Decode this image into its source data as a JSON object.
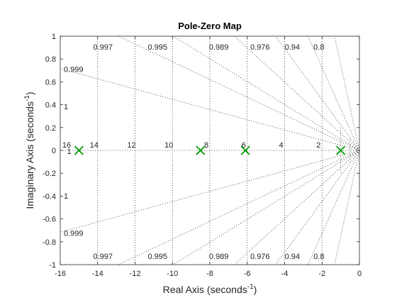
{
  "chart_data": {
    "type": "scatter",
    "title": "Pole-Zero Map",
    "xlabel": {
      "main": "Real Axis (seconds",
      "sup": "-1",
      "close": ")"
    },
    "ylabel": {
      "main": "Imaginary Axis (seconds",
      "sup": "-1",
      "close": ")"
    },
    "xlim": [
      -16,
      0
    ],
    "ylim": [
      -1,
      1
    ],
    "x_ticks": [
      -16,
      -14,
      -12,
      -10,
      -8,
      -6,
      -4,
      -2,
      0
    ],
    "y_ticks": [
      -1,
      -0.8,
      -0.6,
      -0.4,
      -0.2,
      0,
      0.2,
      0.4,
      0.6,
      0.8,
      1
    ],
    "x_tick_labels": [
      "-16",
      "-14",
      "-12",
      "-10",
      "-8",
      "-6",
      "-4",
      "-2",
      "0"
    ],
    "y_tick_labels": [
      "-1",
      "-0.8",
      "-0.6",
      "-0.4",
      "-0.2",
      "0",
      "0.2",
      "0.4",
      "0.6",
      "0.8",
      "1"
    ],
    "grid": true,
    "grid_style": "dotted",
    "poles": {
      "marker": "x",
      "color": "#009900",
      "x": [
        -15,
        -8.5,
        -6.1,
        -1
      ],
      "y": [
        0,
        0,
        0,
        0
      ]
    },
    "damping_lines": [
      0.999,
      0.997,
      0.995,
      0.989,
      0.976,
      0.94,
      0.8
    ],
    "damping_labels": [
      {
        "text": "0.997",
        "zeta": 0.997,
        "edge": "top"
      },
      {
        "text": "0.995",
        "zeta": 0.995,
        "edge": "top"
      },
      {
        "text": "0.989",
        "zeta": 0.989,
        "edge": "top"
      },
      {
        "text": "0.976",
        "zeta": 0.976,
        "edge": "top"
      },
      {
        "text": "0.94",
        "zeta": 0.94,
        "edge": "top"
      },
      {
        "text": "0.8",
        "zeta": 0.8,
        "edge": "top"
      },
      {
        "text": "0.999",
        "zeta": 0.999,
        "edge": "left",
        "sign": 1
      },
      {
        "text": "1",
        "zeta": 0.9997,
        "edge": "left",
        "sign": 1
      },
      {
        "text": "1",
        "zeta": 0.9997,
        "edge": "left",
        "sign": -1
      },
      {
        "text": "0.999",
        "zeta": 0.999,
        "edge": "left",
        "sign": -1
      },
      {
        "text": "0.997",
        "zeta": 0.997,
        "edge": "bottom"
      },
      {
        "text": "0.995",
        "zeta": 0.995,
        "edge": "bottom"
      },
      {
        "text": "0.989",
        "zeta": 0.989,
        "edge": "bottom"
      },
      {
        "text": "0.976",
        "zeta": 0.976,
        "edge": "bottom"
      },
      {
        "text": "0.94",
        "zeta": 0.94,
        "edge": "bottom"
      },
      {
        "text": "0.8",
        "zeta": 0.8,
        "edge": "bottom"
      }
    ],
    "frequency_labels": [
      {
        "text": "16",
        "x": -16
      },
      {
        "text": "14",
        "x": -14
      },
      {
        "text": "12",
        "x": -12
      },
      {
        "text": "10",
        "x": -10
      },
      {
        "text": "8",
        "x": -8
      },
      {
        "text": "6",
        "x": -6
      },
      {
        "text": "4",
        "x": -4
      },
      {
        "text": "2",
        "x": -2
      },
      {
        "text": "1",
        "x": -15.6
      }
    ],
    "colors": {
      "axes": "#262626",
      "grid": "#262626",
      "tick_text": "#262626",
      "pole": "#009900"
    }
  }
}
